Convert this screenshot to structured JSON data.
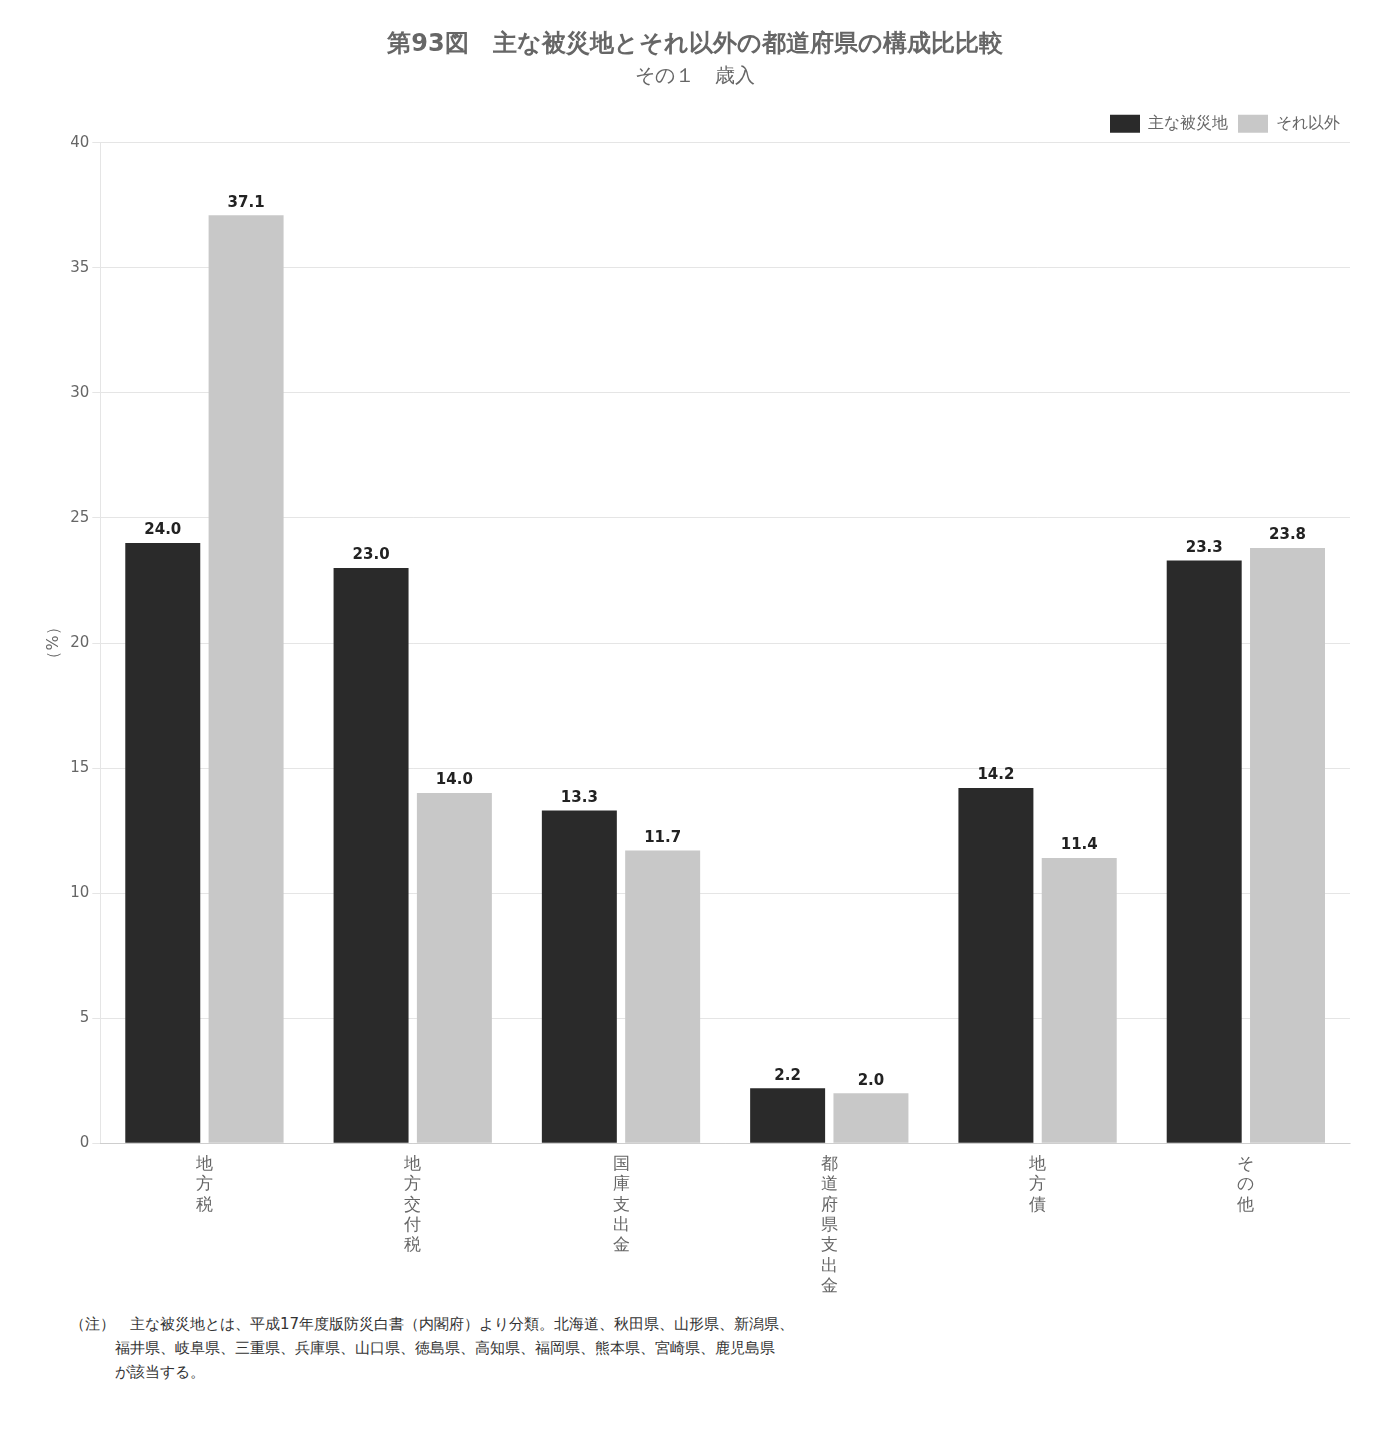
{
  "chart_data": {
    "type": "bar",
    "title": "第93図　主な被災地とそれ以外の都道府県の構成比比較",
    "subtitle": "その１　歳入",
    "ylabel": "（%）",
    "categories": [
      "地\n方\n税",
      "地\n方\n交\n付\n税",
      "国\n庫\n支\n出\n金",
      "都\n道\n府\n県\n支\n出\n金",
      "地\n方\n債",
      "そ\nの\n他"
    ],
    "series": [
      {
        "name": "主な被災地",
        "color": "#2a2a2a",
        "values": [
          24.0,
          23.0,
          13.3,
          2.2,
          14.2,
          23.3
        ],
        "value_labels": [
          "24.0",
          "23.0",
          "13.3",
          "2.2",
          "14.2",
          "23.3"
        ]
      },
      {
        "name": "それ以外",
        "color": "#c8c8c8",
        "values": [
          37.1,
          14.0,
          11.7,
          2.0,
          11.4,
          23.8
        ],
        "value_labels": [
          "37.1",
          "14.0",
          "11.7",
          "2.0",
          "11.4",
          "23.8"
        ]
      }
    ],
    "ylim": [
      0,
      40
    ],
    "yticks": [
      0,
      5,
      10,
      15,
      20,
      25,
      30,
      35,
      40
    ],
    "grid": true,
    "legend": "upper right",
    "data_labels": true,
    "annotations": [
      "（注）　主な被災地とは、平成17年度版防災白書（内閣府）より分類。北海道、秋田県、山形県、新潟県、",
      "　　　福井県、岐阜県、三重県、兵庫県、山口県、徳島県、高知県、福岡県、熊本県、宮崎県、鹿児島県",
      "　　　が該当する。"
    ]
  }
}
